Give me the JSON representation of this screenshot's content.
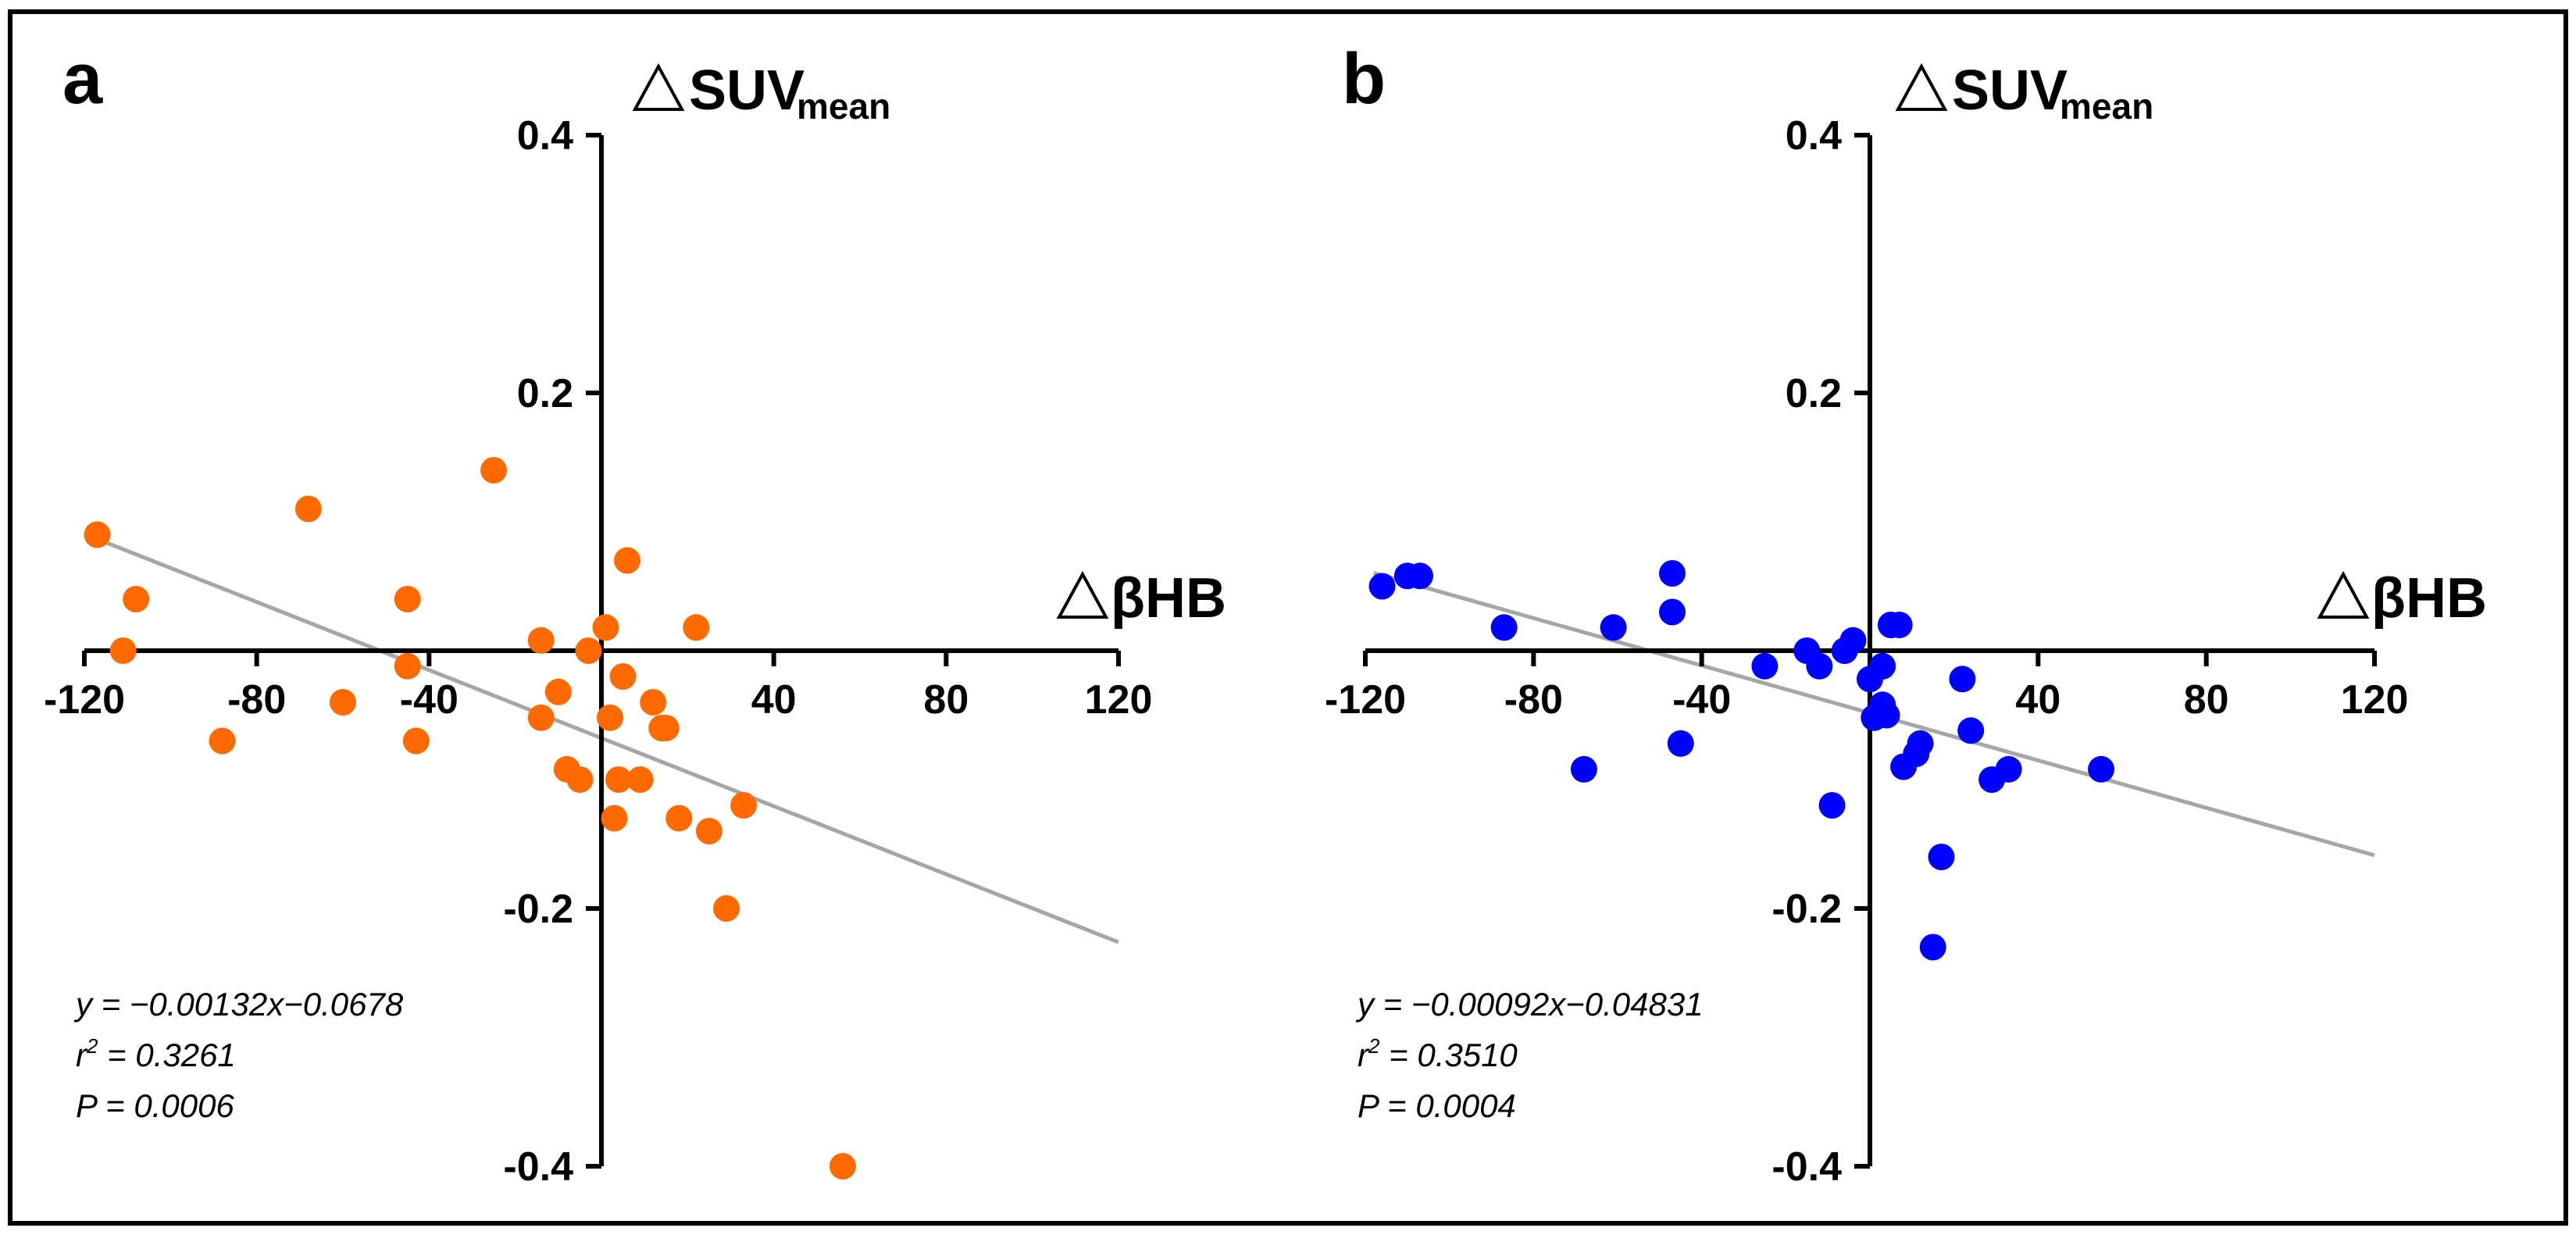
{
  "chart_data": [
    {
      "type": "scatter",
      "panel_label": "a",
      "ylabel": {
        "symbol": "△",
        "main": "SUV",
        "sub": "mean"
      },
      "xlabel": {
        "symbol": "△",
        "main": "βHB"
      },
      "xlim": [
        -120,
        120
      ],
      "ylim": [
        -0.4,
        0.4
      ],
      "x_ticks": [
        -120,
        -80,
        -40,
        40,
        80,
        120
      ],
      "x_tick_labels": [
        "-120",
        "-80",
        "-40",
        "40",
        "80",
        "120"
      ],
      "y_ticks": [
        -0.4,
        -0.2,
        0.2,
        0.4
      ],
      "y_tick_labels": [
        "-0.4",
        "-0.2",
        "0.2",
        "0.4"
      ],
      "color": "#FF6A00",
      "line_color": "#A6A6A6",
      "fit": {
        "slope": -0.00132,
        "intercept": -0.0678,
        "x_range": [
          -118,
          120
        ]
      },
      "stats": {
        "equation": "y = −0.00132x−0.0678",
        "r2_prefix": "r",
        "r2_sup": "2",
        "r2_value": " = 0.3261",
        "p_value": "P = 0.0006"
      },
      "points": [
        [
          -117,
          0.09
        ],
        [
          -108,
          0.04
        ],
        [
          -111,
          0.0
        ],
        [
          -68,
          0.11
        ],
        [
          -88,
          -0.07
        ],
        [
          -60,
          -0.04
        ],
        [
          -45,
          0.04
        ],
        [
          -45,
          -0.012
        ],
        [
          -43,
          -0.07
        ],
        [
          -25,
          0.14
        ],
        [
          -14,
          0.008
        ],
        [
          -14,
          -0.052
        ],
        [
          -10,
          -0.032
        ],
        [
          -8,
          -0.092
        ],
        [
          -5,
          -0.1
        ],
        [
          -3,
          0.0
        ],
        [
          1,
          0.018
        ],
        [
          2,
          -0.052
        ],
        [
          3,
          -0.13
        ],
        [
          4,
          -0.1
        ],
        [
          5,
          -0.02
        ],
        [
          6,
          0.07
        ],
        [
          9,
          -0.1
        ],
        [
          12,
          -0.04
        ],
        [
          14,
          -0.06
        ],
        [
          15,
          -0.06
        ],
        [
          18,
          -0.13
        ],
        [
          22,
          0.018
        ],
        [
          25,
          -0.14
        ],
        [
          29,
          -0.2
        ],
        [
          33,
          -0.12
        ],
        [
          56,
          -0.4
        ]
      ]
    },
    {
      "type": "scatter",
      "panel_label": "b",
      "ylabel": {
        "symbol": "△",
        "main": "SUV",
        "sub": "mean"
      },
      "xlabel": {
        "symbol": "△",
        "main": "βHB"
      },
      "xlim": [
        -120,
        120
      ],
      "ylim": [
        -0.4,
        0.4
      ],
      "x_ticks": [
        -120,
        -80,
        -40,
        40,
        80,
        120
      ],
      "x_tick_labels": [
        "-120",
        "-80",
        "-40",
        "40",
        "80",
        "120"
      ],
      "y_ticks": [
        -0.4,
        -0.2,
        0.2,
        0.4
      ],
      "y_tick_labels": [
        "-0.4",
        "-0.2",
        "0.2",
        "0.4"
      ],
      "color": "#0000FF",
      "line_color": "#A6A6A6",
      "fit": {
        "slope": -0.00092,
        "intercept": -0.04831,
        "x_range": [
          -118,
          120
        ]
      },
      "stats": {
        "equation": "y = −0.00092x−0.04831",
        "r2_prefix": "r",
        "r2_sup": "2",
        "r2_value": " = 0.3510",
        "p_value": "P = 0.0004"
      },
      "points": [
        [
          -116,
          0.05
        ],
        [
          -110,
          0.058
        ],
        [
          -107,
          0.058
        ],
        [
          -87,
          0.018
        ],
        [
          -61,
          0.018
        ],
        [
          -68,
          -0.092
        ],
        [
          -47,
          0.06
        ],
        [
          -47,
          0.03
        ],
        [
          -45,
          -0.072
        ],
        [
          -25,
          -0.012
        ],
        [
          -15,
          0.0
        ],
        [
          -12,
          -0.012
        ],
        [
          -9,
          -0.12
        ],
        [
          -6,
          0.0
        ],
        [
          -4,
          0.008
        ],
        [
          0,
          -0.022
        ],
        [
          1,
          -0.052
        ],
        [
          3,
          -0.012
        ],
        [
          3,
          -0.042
        ],
        [
          4,
          -0.05
        ],
        [
          5,
          0.02
        ],
        [
          7,
          0.02
        ],
        [
          8,
          -0.09
        ],
        [
          11,
          -0.08
        ],
        [
          12,
          -0.072
        ],
        [
          15,
          -0.23
        ],
        [
          17,
          -0.16
        ],
        [
          22,
          -0.022
        ],
        [
          24,
          -0.062
        ],
        [
          29,
          -0.1
        ],
        [
          33,
          -0.092
        ],
        [
          55,
          -0.092
        ]
      ]
    }
  ]
}
